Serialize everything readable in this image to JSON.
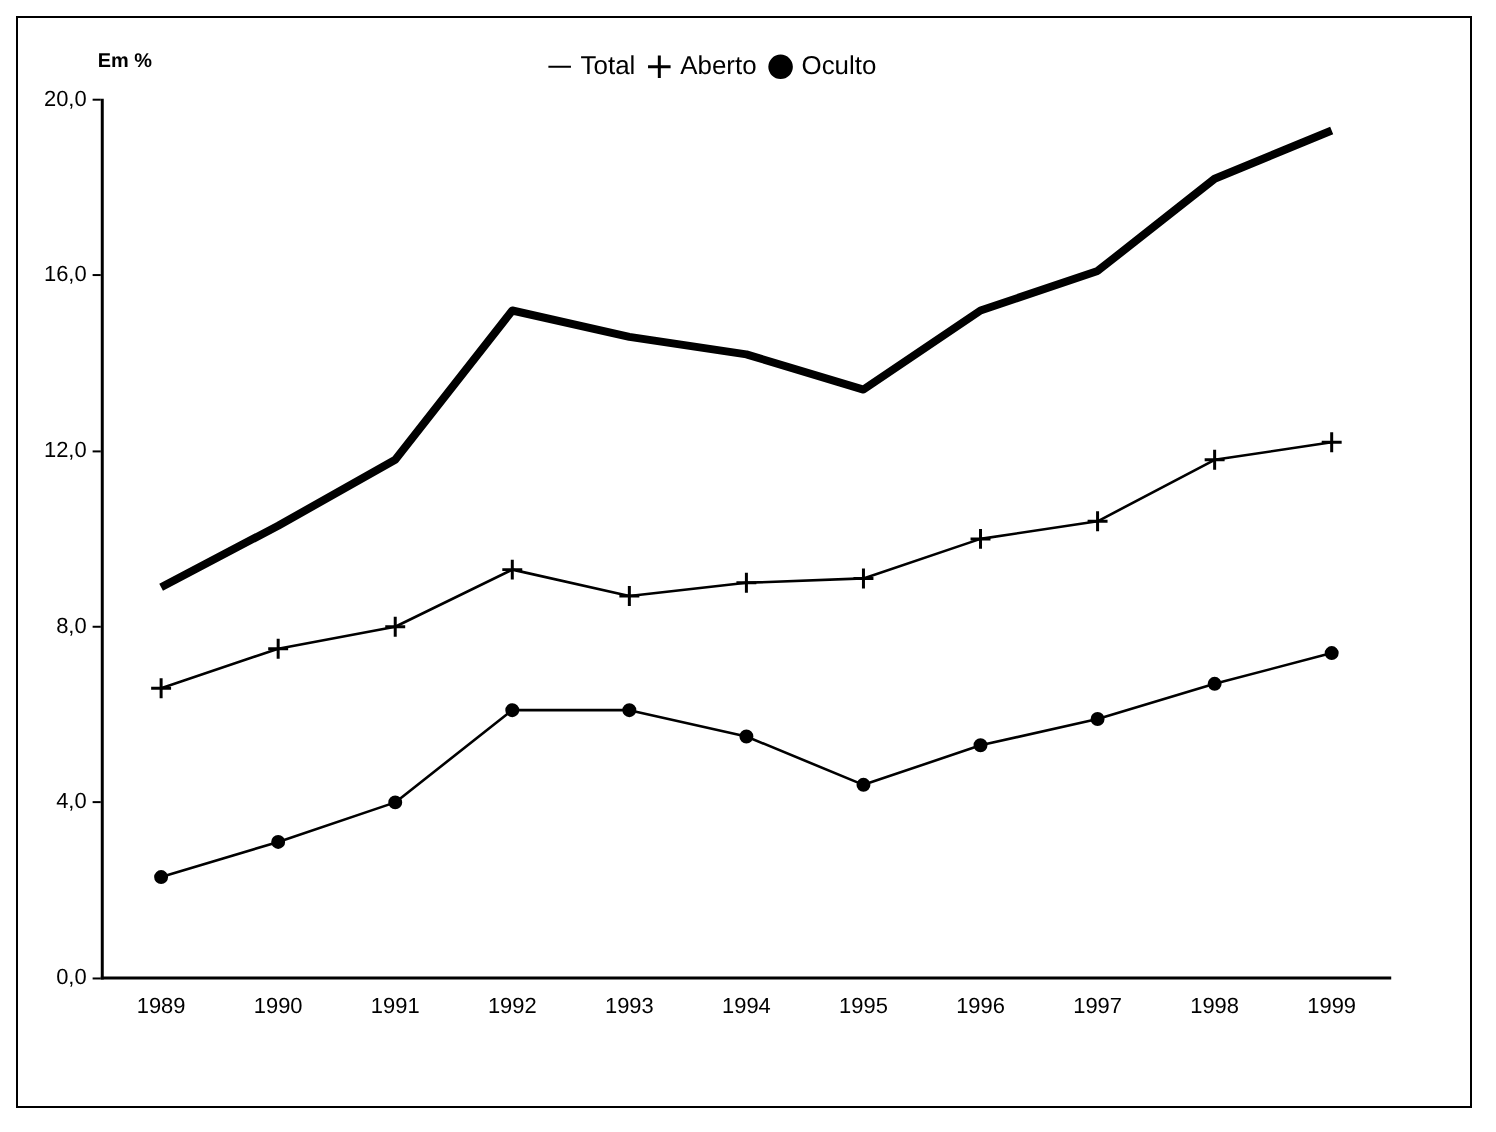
{
  "chart_data": {
    "type": "line",
    "ylabel": "Em %",
    "categories": [
      "1989",
      "1990",
      "1991",
      "1992",
      "1993",
      "1994",
      "1995",
      "1996",
      "1997",
      "1998",
      "1999"
    ],
    "series": [
      {
        "name": "Total",
        "color": "#000000",
        "marker": "none",
        "values": [
          8.9,
          10.3,
          11.8,
          15.2,
          14.6,
          14.2,
          13.4,
          15.2,
          16.1,
          18.2,
          19.3
        ]
      },
      {
        "name": "Aberto",
        "color": "#000000",
        "marker": "cross",
        "values": [
          6.6,
          7.5,
          8.0,
          9.3,
          8.7,
          9.0,
          9.1,
          10.0,
          10.4,
          11.8,
          12.2
        ]
      },
      {
        "name": "Oculto",
        "color": "#000000",
        "marker": "circle",
        "values": [
          2.3,
          3.1,
          4.0,
          6.1,
          6.1,
          5.5,
          4.4,
          5.3,
          5.9,
          6.7,
          7.4
        ]
      }
    ],
    "ylim": [
      0,
      20
    ],
    "yticks": [
      {
        "value": 0,
        "label": "0,0"
      },
      {
        "value": 4,
        "label": "4,0"
      },
      {
        "value": 8,
        "label": "8,0"
      },
      {
        "value": 12,
        "label": "12,0"
      },
      {
        "value": 16,
        "label": "16,0"
      },
      {
        "value": 20,
        "label": "20,0"
      }
    ],
    "grid": false,
    "legend": "top",
    "line_style": "solid"
  }
}
